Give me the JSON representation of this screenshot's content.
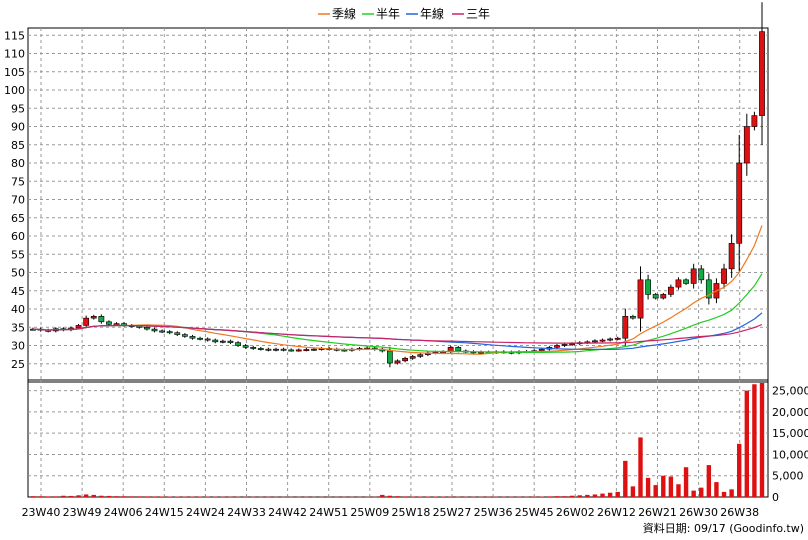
{
  "chart_data": {
    "type": "candlestick-volume",
    "legend": [
      {
        "label": "季線",
        "color": "#f07820"
      },
      {
        "label": "半年",
        "color": "#22cc22"
      },
      {
        "label": "年線",
        "color": "#2266dd"
      },
      {
        "label": "三年",
        "color": "#cc2266"
      }
    ],
    "x_tick_labels": [
      "23W40",
      "23W49",
      "24W06",
      "24W15",
      "24W24",
      "24W33",
      "24W42",
      "24W51",
      "25W09",
      "25W18",
      "25W27",
      "25W36",
      "25W45",
      "26W02",
      "26W12",
      "26W21",
      "26W30",
      "26W38"
    ],
    "price_axis": {
      "ticks": [
        25,
        30,
        35,
        40,
        45,
        50,
        55,
        60,
        65,
        70,
        75,
        80,
        85,
        90,
        95,
        100,
        105,
        110,
        115
      ],
      "ylim": [
        20,
        117
      ]
    },
    "volume_axis": {
      "tick_labels": [
        "0",
        "5,000",
        "10,000",
        "15,000",
        "20,000",
        "25,000"
      ],
      "ticks": [
        0,
        5000,
        10000,
        15000,
        20000,
        25000
      ],
      "ylim": [
        0,
        27500
      ]
    },
    "credit": "資料日期: 09/17  (Goodinfo.tw)",
    "close": [
      34.5,
      34.2,
      34.0,
      34.6,
      34.3,
      34.8,
      35.5,
      37.5,
      38.0,
      36.5,
      35.8,
      36.0,
      35.5,
      35.3,
      35.0,
      34.5,
      34.0,
      33.8,
      33.5,
      33.0,
      32.5,
      32.0,
      31.8,
      31.5,
      31.0,
      31.2,
      30.8,
      30.0,
      29.5,
      29.2,
      29.0,
      28.8,
      29.0,
      28.8,
      28.7,
      28.8,
      28.9,
      29.0,
      29.2,
      29.0,
      28.8,
      28.7,
      29.0,
      29.2,
      29.3,
      29.0,
      28.5,
      25.2,
      25.8,
      26.5,
      27.0,
      27.5,
      28.0,
      28.2,
      28.3,
      29.5,
      28.5,
      28.3,
      28.0,
      28.2,
      28.1,
      28.3,
      28.2,
      28.0,
      28.3,
      28.4,
      28.6,
      29.0,
      29.5,
      30.0,
      30.3,
      30.5,
      30.8,
      31.0,
      31.3,
      31.5,
      31.8,
      32.0,
      38.0,
      37.5,
      48.0,
      44.0,
      43.0,
      44.0,
      46.0,
      48.0,
      47.0,
      51.0,
      48.0,
      43.0,
      47.0,
      51.0,
      58.0,
      80.0,
      90.0,
      93.0,
      116.0
    ],
    "volume": [
      200,
      180,
      150,
      160,
      300,
      250,
      400,
      600,
      500,
      300,
      250,
      200,
      180,
      170,
      160,
      150,
      140,
      130,
      120,
      110,
      100,
      100,
      100,
      90,
      90,
      90,
      80,
      80,
      80,
      70,
      70,
      70,
      70,
      60,
      60,
      60,
      60,
      60,
      60,
      60,
      60,
      60,
      60,
      60,
      60,
      60,
      500,
      300,
      200,
      150,
      100,
      100,
      100,
      100,
      100,
      100,
      80,
      80,
      80,
      80,
      80,
      80,
      80,
      80,
      80,
      80,
      100,
      100,
      150,
      200,
      200,
      300,
      400,
      500,
      600,
      800,
      1000,
      1200,
      8500,
      2500,
      14000,
      4500,
      2800,
      5000,
      4800,
      3000,
      7000,
      1500,
      2200,
      7500,
      3500,
      1200,
      1800,
      12500,
      25000,
      26500,
      26800
    ]
  }
}
